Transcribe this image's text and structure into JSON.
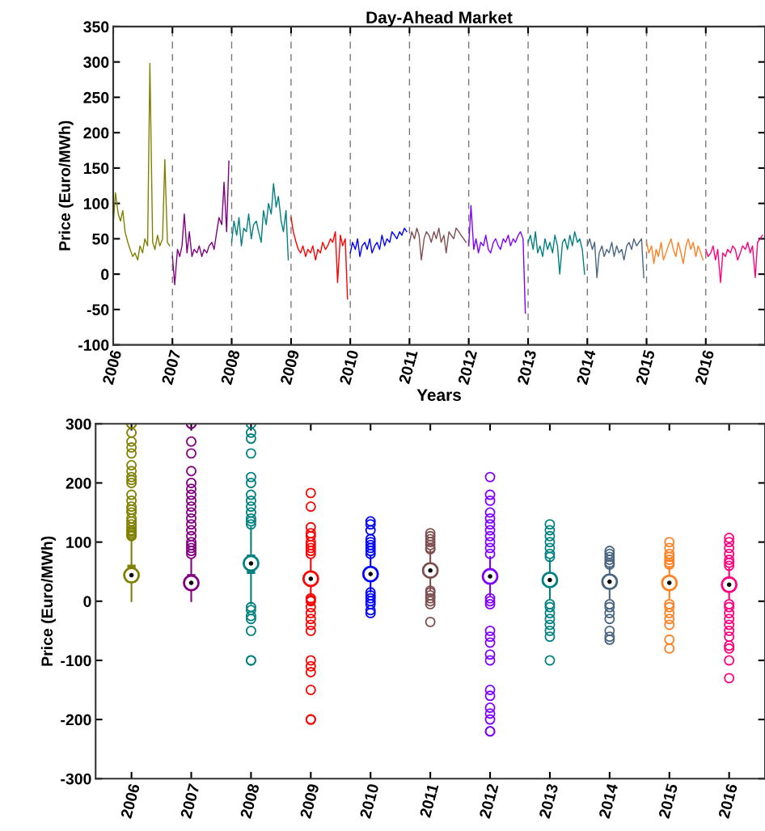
{
  "chart_data": [
    {
      "type": "line",
      "title": "Day-Ahead Market",
      "xlabel": "Years",
      "ylabel": "Price (Euro/MWh)",
      "xlim": [
        "2006-01-01",
        "2016-12-31"
      ],
      "ylim": [
        -100,
        350
      ],
      "yticks": [
        -100,
        -50,
        0,
        50,
        100,
        150,
        200,
        250,
        300,
        350
      ],
      "xticks": [
        {
          "value": "2006-01-01",
          "label": "2006"
        },
        {
          "value": "2007-01-01",
          "label": "2007"
        },
        {
          "value": "2008-01-01",
          "label": "2008"
        },
        {
          "value": "2009-01-01",
          "label": "2009"
        },
        {
          "value": "2010-01-01",
          "label": "2010"
        },
        {
          "value": "2011-01-01",
          "label": "2011"
        },
        {
          "value": "2012-01-01",
          "label": "2012"
        },
        {
          "value": "2013-01-01",
          "label": "2013"
        },
        {
          "value": "2014-01-01",
          "label": "2014"
        },
        {
          "value": "2015-01-01",
          "label": "2015"
        },
        {
          "value": "2016-01-01",
          "label": "2016"
        }
      ],
      "grid": "x",
      "legend": false,
      "series": [
        {
          "color": "#808000",
          "x": [
            "2006-01-01",
            "2006-01-15",
            "2006-02-01",
            "2006-02-15",
            "2006-03-01",
            "2006-03-15",
            "2006-04-01",
            "2006-04-15",
            "2006-05-01",
            "2006-05-15",
            "2006-06-01",
            "2006-06-15",
            "2006-07-01",
            "2006-07-15",
            "2006-08-01",
            "2006-08-15",
            "2006-09-01",
            "2006-09-15",
            "2006-10-01",
            "2006-10-15",
            "2006-11-01",
            "2006-11-15",
            "2006-12-01",
            "2006-12-15"
          ],
          "values": [
            70,
            115,
            85,
            75,
            90,
            60,
            45,
            35,
            25,
            30,
            20,
            40,
            30,
            50,
            40,
            298,
            45,
            35,
            55,
            40,
            50,
            162,
            45,
            40
          ]
        },
        {
          "color": "#800080",
          "x": [
            "2007-01-01",
            "2007-01-15",
            "2007-02-01",
            "2007-02-15",
            "2007-03-01",
            "2007-03-15",
            "2007-04-01",
            "2007-04-15",
            "2007-05-01",
            "2007-05-15",
            "2007-06-01",
            "2007-06-15",
            "2007-07-01",
            "2007-07-15",
            "2007-08-01",
            "2007-08-15",
            "2007-09-01",
            "2007-09-15",
            "2007-10-01",
            "2007-10-15",
            "2007-11-01",
            "2007-11-15",
            "2007-12-01",
            "2007-12-15"
          ],
          "values": [
            25,
            -15,
            35,
            25,
            40,
            85,
            30,
            60,
            25,
            35,
            30,
            40,
            25,
            35,
            30,
            40,
            45,
            35,
            60,
            80,
            70,
            130,
            60,
            160
          ]
        },
        {
          "color": "#008080",
          "x": [
            "2008-01-01",
            "2008-01-15",
            "2008-02-01",
            "2008-02-15",
            "2008-03-01",
            "2008-03-15",
            "2008-04-01",
            "2008-04-15",
            "2008-05-01",
            "2008-05-15",
            "2008-06-01",
            "2008-06-15",
            "2008-07-01",
            "2008-07-15",
            "2008-08-01",
            "2008-08-15",
            "2008-09-01",
            "2008-09-15",
            "2008-10-01",
            "2008-10-15",
            "2008-11-01",
            "2008-11-15",
            "2008-12-01",
            "2008-12-15"
          ],
          "values": [
            45,
            75,
            55,
            80,
            40,
            65,
            60,
            85,
            50,
            70,
            75,
            60,
            45,
            90,
            70,
            100,
            85,
            128,
            95,
            110,
            75,
            60,
            90,
            20
          ]
        },
        {
          "color": "#ff0000",
          "x": [
            "2009-01-01",
            "2009-01-15",
            "2009-02-01",
            "2009-02-15",
            "2009-03-01",
            "2009-03-15",
            "2009-04-01",
            "2009-04-15",
            "2009-05-01",
            "2009-05-15",
            "2009-06-01",
            "2009-06-15",
            "2009-07-01",
            "2009-07-15",
            "2009-08-01",
            "2009-08-15",
            "2009-09-01",
            "2009-09-15",
            "2009-10-01",
            "2009-10-15",
            "2009-11-01",
            "2009-11-15",
            "2009-12-01",
            "2009-12-15"
          ],
          "values": [
            80,
            60,
            45,
            35,
            30,
            40,
            25,
            35,
            30,
            40,
            20,
            35,
            30,
            45,
            35,
            40,
            50,
            45,
            60,
            -12,
            55,
            40,
            50,
            -35
          ]
        },
        {
          "color": "#0000ff",
          "x": [
            "2010-01-01",
            "2010-01-15",
            "2010-02-01",
            "2010-02-15",
            "2010-03-01",
            "2010-03-15",
            "2010-04-01",
            "2010-04-15",
            "2010-05-01",
            "2010-05-15",
            "2010-06-01",
            "2010-06-15",
            "2010-07-01",
            "2010-07-15",
            "2010-08-01",
            "2010-08-15",
            "2010-09-01",
            "2010-09-15",
            "2010-10-01",
            "2010-10-15",
            "2010-11-01",
            "2010-11-15",
            "2010-12-01",
            "2010-12-15"
          ],
          "values": [
            30,
            45,
            35,
            50,
            25,
            40,
            45,
            35,
            50,
            30,
            40,
            45,
            35,
            55,
            40,
            50,
            45,
            60,
            55,
            50,
            60,
            55,
            65,
            60
          ]
        },
        {
          "color": "#7e4f4f",
          "x": [
            "2011-01-01",
            "2011-01-15",
            "2011-02-01",
            "2011-02-15",
            "2011-03-01",
            "2011-03-15",
            "2011-04-01",
            "2011-04-15",
            "2011-05-01",
            "2011-05-15",
            "2011-06-01",
            "2011-06-15",
            "2011-07-01",
            "2011-07-15",
            "2011-08-01",
            "2011-08-15",
            "2011-09-01",
            "2011-09-15",
            "2011-10-01",
            "2011-10-15",
            "2011-11-01",
            "2011-11-15",
            "2011-12-01",
            "2011-12-15"
          ],
          "values": [
            45,
            60,
            50,
            65,
            55,
            20,
            50,
            60,
            55,
            45,
            60,
            50,
            65,
            45,
            55,
            30,
            60,
            55,
            50,
            65,
            60,
            55,
            50,
            45
          ]
        },
        {
          "color": "#8000ff",
          "x": [
            "2012-01-01",
            "2012-01-15",
            "2012-02-01",
            "2012-02-15",
            "2012-03-01",
            "2012-03-15",
            "2012-04-01",
            "2012-04-15",
            "2012-05-01",
            "2012-05-15",
            "2012-06-01",
            "2012-06-15",
            "2012-07-01",
            "2012-07-15",
            "2012-08-01",
            "2012-08-15",
            "2012-09-01",
            "2012-09-15",
            "2012-10-01",
            "2012-10-15",
            "2012-11-01",
            "2012-11-15",
            "2012-12-01",
            "2012-12-15"
          ],
          "values": [
            40,
            97,
            35,
            50,
            30,
            45,
            40,
            55,
            35,
            30,
            45,
            50,
            40,
            35,
            50,
            45,
            55,
            40,
            50,
            45,
            55,
            60,
            50,
            -55
          ]
        },
        {
          "color": "#008080",
          "x": [
            "2013-01-01",
            "2013-01-15",
            "2013-02-01",
            "2013-02-15",
            "2013-03-01",
            "2013-03-15",
            "2013-04-01",
            "2013-04-15",
            "2013-05-01",
            "2013-05-15",
            "2013-06-01",
            "2013-06-15",
            "2013-07-01",
            "2013-07-15",
            "2013-08-01",
            "2013-08-15",
            "2013-09-01",
            "2013-09-15",
            "2013-10-01",
            "2013-10-15",
            "2013-11-01",
            "2013-11-15",
            "2013-12-01",
            "2013-12-15"
          ],
          "values": [
            45,
            55,
            35,
            60,
            30,
            40,
            25,
            50,
            35,
            45,
            30,
            55,
            40,
            0,
            45,
            50,
            35,
            55,
            40,
            60,
            45,
            50,
            35,
            0
          ]
        },
        {
          "color": "#4a6580",
          "x": [
            "2014-01-01",
            "2014-01-15",
            "2014-02-01",
            "2014-02-15",
            "2014-03-01",
            "2014-03-15",
            "2014-04-01",
            "2014-04-15",
            "2014-05-01",
            "2014-05-15",
            "2014-06-01",
            "2014-06-15",
            "2014-07-01",
            "2014-07-15",
            "2014-08-01",
            "2014-08-15",
            "2014-09-01",
            "2014-09-15",
            "2014-10-01",
            "2014-10-15",
            "2014-11-01",
            "2014-11-15",
            "2014-12-01",
            "2014-12-15"
          ],
          "values": [
            40,
            50,
            35,
            45,
            -5,
            30,
            40,
            25,
            35,
            30,
            45,
            25,
            40,
            30,
            35,
            20,
            40,
            45,
            35,
            50,
            40,
            45,
            50,
            -5
          ]
        },
        {
          "color": "#ff8020",
          "x": [
            "2015-01-01",
            "2015-01-15",
            "2015-02-01",
            "2015-02-15",
            "2015-03-01",
            "2015-03-15",
            "2015-04-01",
            "2015-04-15",
            "2015-05-01",
            "2015-05-15",
            "2015-06-01",
            "2015-06-15",
            "2015-07-01",
            "2015-07-15",
            "2015-08-01",
            "2015-08-15",
            "2015-09-01",
            "2015-09-15",
            "2015-10-01",
            "2015-10-15",
            "2015-11-01",
            "2015-11-15",
            "2015-12-01",
            "2015-12-15"
          ],
          "values": [
            45,
            30,
            40,
            15,
            35,
            25,
            45,
            20,
            30,
            40,
            50,
            35,
            25,
            45,
            30,
            15,
            40,
            50,
            35,
            45,
            25,
            40,
            30,
            20
          ]
        },
        {
          "color": "#ff0080",
          "x": [
            "2016-01-01",
            "2016-01-15",
            "2016-02-01",
            "2016-02-15",
            "2016-03-01",
            "2016-03-15",
            "2016-04-01",
            "2016-04-15",
            "2016-05-01",
            "2016-05-15",
            "2016-06-01",
            "2016-06-15",
            "2016-07-01",
            "2016-07-15",
            "2016-08-01",
            "2016-08-15",
            "2016-09-01",
            "2016-09-15",
            "2016-10-01",
            "2016-10-15",
            "2016-11-01",
            "2016-11-15",
            "2016-12-01",
            "2016-12-15"
          ],
          "values": [
            35,
            25,
            30,
            40,
            20,
            35,
            -12,
            30,
            25,
            35,
            30,
            40,
            35,
            20,
            30,
            40,
            35,
            45,
            30,
            40,
            -5,
            45,
            50,
            55
          ]
        }
      ]
    },
    {
      "type": "box",
      "ylabel": "Price (Euro/MWh)",
      "ylim": [
        -300,
        300
      ],
      "yticks": [
        -300,
        -200,
        -100,
        0,
        100,
        200,
        300
      ],
      "categories": [
        "2006",
        "2007",
        "2008",
        "2009",
        "2010",
        "2011",
        "2012",
        "2013",
        "2014",
        "2015",
        "2016"
      ],
      "colors": [
        "#808000",
        "#800080",
        "#008080",
        "#ff0000",
        "#0000ff",
        "#7e4f4f",
        "#8000ff",
        "#008080",
        "#4a6580",
        "#ff8020",
        "#ff0080"
      ],
      "boxes": [
        {
          "low": 0,
          "q1": 32,
          "median": 44,
          "q3": 61,
          "high": 104,
          "outliers": [
            110,
            112,
            115,
            118,
            120,
            125,
            130,
            135,
            140,
            150,
            155,
            160,
            170,
            180,
            200,
            205,
            210,
            220,
            230,
            250,
            260,
            270,
            285,
            300,
            300
          ]
        },
        {
          "low": 0,
          "q1": 28,
          "median": 31,
          "q3": 45,
          "high": 71,
          "outliers": [
            80,
            85,
            90,
            95,
            100,
            110,
            120,
            130,
            140,
            150,
            160,
            170,
            180,
            190,
            200,
            220,
            250,
            270,
            300,
            300
          ]
        },
        {
          "low": -4,
          "q1": 47,
          "median": 64,
          "q3": 78,
          "high": 125,
          "outliers": [
            130,
            135,
            140,
            150,
            160,
            170,
            180,
            200,
            210,
            250,
            275,
            285,
            300,
            -10,
            -15,
            -25,
            -30,
            -50,
            -100,
            -100
          ]
        },
        {
          "low": 8,
          "q1": 34,
          "median": 38,
          "q3": 42,
          "high": 72,
          "outliers": [
            80,
            85,
            90,
            95,
            100,
            110,
            115,
            125,
            160,
            183,
            0,
            2,
            5,
            -10,
            -20,
            -30,
            -40,
            -50,
            -100,
            -110,
            -120,
            -150,
            -200,
            -200
          ]
        },
        {
          "low": 16,
          "q1": 42,
          "median": 46,
          "q3": 50,
          "high": 75,
          "outliers": [
            80,
            85,
            90,
            95,
            100,
            105,
            120,
            130,
            135,
            -5,
            0,
            5,
            10,
            15,
            -15,
            -20
          ]
        },
        {
          "low": 20,
          "q1": 48,
          "median": 52,
          "q3": 56,
          "high": 85,
          "outliers": [
            88,
            90,
            95,
            100,
            105,
            110,
            115,
            -5,
            0,
            5,
            10,
            15,
            18,
            -35
          ]
        },
        {
          "low": 10,
          "q1": 38,
          "median": 42,
          "q3": 46,
          "high": 75,
          "outliers": [
            80,
            90,
            100,
            110,
            120,
            130,
            140,
            150,
            170,
            180,
            210,
            -5,
            0,
            5,
            -50,
            -60,
            -70,
            -90,
            -100,
            -150,
            -160,
            -180,
            -190,
            -200,
            -220,
            -220
          ]
        },
        {
          "low": 5,
          "q1": 32,
          "median": 36,
          "q3": 40,
          "high": 70,
          "outliers": [
            75,
            80,
            90,
            100,
            110,
            120,
            130,
            -5,
            -10,
            -20,
            -30,
            -40,
            -50,
            -60,
            -100
          ]
        },
        {
          "low": 5,
          "q1": 29,
          "median": 33,
          "q3": 37,
          "high": 58,
          "outliers": [
            62,
            65,
            70,
            75,
            80,
            85,
            -5,
            -10,
            -20,
            -30,
            -50,
            -60,
            -65
          ]
        },
        {
          "low": 5,
          "q1": 27,
          "median": 31,
          "q3": 35,
          "high": 58,
          "outliers": [
            62,
            65,
            70,
            75,
            80,
            90,
            100,
            -5,
            -10,
            -20,
            -30,
            -40,
            -65,
            -80
          ]
        },
        {
          "low": 5,
          "q1": 24,
          "median": 28,
          "q3": 32,
          "high": 55,
          "outliers": [
            60,
            65,
            70,
            80,
            90,
            100,
            107,
            -5,
            -10,
            -20,
            -30,
            -40,
            -50,
            -60,
            -75,
            -80,
            -100,
            -130
          ]
        }
      ]
    }
  ]
}
